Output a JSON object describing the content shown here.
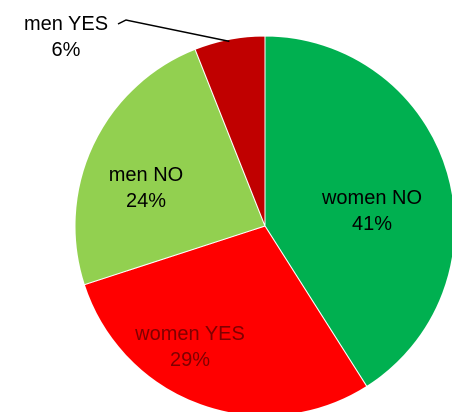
{
  "chart_data": {
    "type": "pie",
    "slices": [
      {
        "label": "women NO",
        "value": 41,
        "display": "41%",
        "color": "#00b050",
        "text_color": "#000000"
      },
      {
        "label": "women YES",
        "value": 29,
        "display": "29%",
        "color": "#ff0000",
        "text_color": "#7f0000"
      },
      {
        "label": "men NO",
        "value": 24,
        "display": "24%",
        "color": "#92d050",
        "text_color": "#000000"
      },
      {
        "label": "men YES",
        "value": 6,
        "display": "6%",
        "color": "#c00000",
        "text_color": "#000000"
      }
    ],
    "start_angle_deg": 0,
    "direction": "clockwise",
    "legend": "none"
  }
}
